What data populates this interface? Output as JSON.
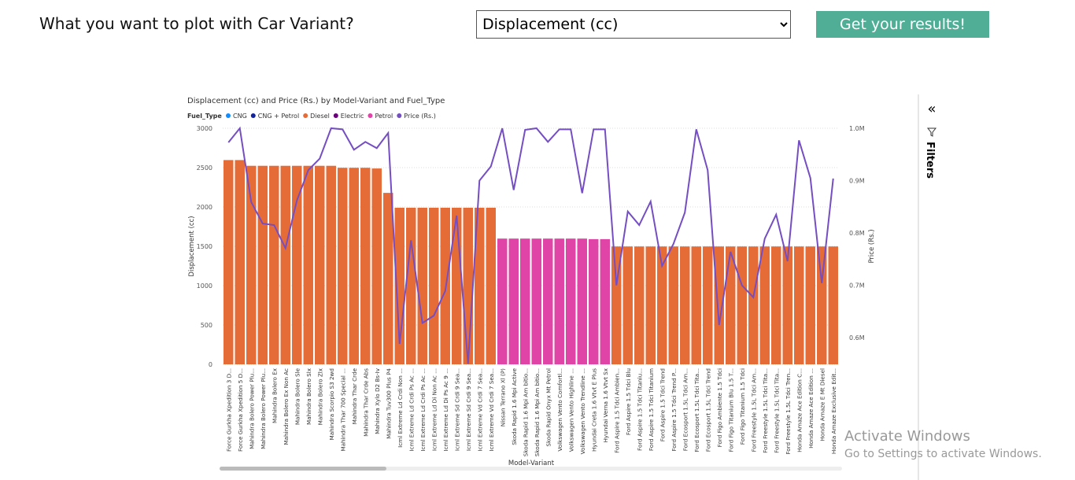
{
  "header": {
    "question": "What you want to plot with Car Variant?",
    "selected": "Displacement (cc)",
    "button": "Get your results!"
  },
  "filters": {
    "label": "Filters"
  },
  "watermark": {
    "title": "Activate Windows",
    "text": "Go to Settings to activate Windows."
  },
  "chart_data": {
    "type": "bar",
    "title": "Displacement (cc) and Price (Rs.) by Model-Variant and Fuel_Type",
    "x_label": "Model-Variant",
    "y_label": "Displacement (cc)",
    "y2_label": "Price (Rs.)",
    "legend_title": "Fuel_Type",
    "legend": [
      {
        "name": "CNG",
        "color": "#118dff"
      },
      {
        "name": "CNG + Petrol",
        "color": "#12239e"
      },
      {
        "name": "Diesel",
        "color": "#e66c37"
      },
      {
        "name": "Electric",
        "color": "#6b007b"
      },
      {
        "name": "Petrol",
        "color": "#e044a7"
      }
    ],
    "categories": [
      "Force Gurkha Xpedition 3 D...",
      "Force Gurkha Xpedition 5 D...",
      "Mahindra Bolero Power Plu...",
      "Mahindra Bolero Power Plu...",
      "Mahindra Bolero Ex",
      "Mahindra Bolero Ex Non Ac",
      "Mahindra Bolero Sle",
      "Mahindra Bolero Slx",
      "Mahindra Bolero Zlx",
      "Mahindra Scorpio S3 2wd",
      "Mahindra Thar 700 Special ...",
      "Mahindra Thar Crde",
      "Mahindra Thar Crde Abs",
      "Mahindra Xylo D2 Bs-Iv",
      "Mahindra Tuv300 Plus P4",
      "Icml Extreme Ld Crdi Non ...",
      "Icml Extreme Ld Crdi Ps Ac ...",
      "Icml Extreme Ld Crdi Ps Ac ...",
      "Icml Extreme Ld Di Non Ac ...",
      "Icml Extreme Ld Di Ps Ac 9 ...",
      "Icml Extreme Sd Crdi 9 Sea...",
      "Icml Extreme Sd Crdi 9 Sea...",
      "Icml Extreme Vd Crdi 7 Sea...",
      "Icml Extreme Vd Crdi 7 Sea...",
      "Nissan Terrano Xl (P)",
      "Skoda Rapid 1.6 Mpi Active",
      "Skoda Rapid 1.6 Mpi Am bitio...",
      "Skoda Rapid 1.6 Mpi Am bitio...",
      "Skoda Rapid Onyx Mt Petrol",
      "Volkswagen Vento Comfortl...",
      "Volkswagen Vento Highline ...",
      "Volkswagen Vento Trendline ...",
      "Hyundai Creta 1.6 Vtvt E Plus",
      "Hyundai Verna 1.6 Vtvt Sx",
      "Ford Aspire 1.5 Tdci Ambien...",
      "Ford Aspire 1.5 Tdci Blu",
      "Ford Aspire 1.5 Tdci Titaniu...",
      "Ford Aspire 1.5 Tdci Titanium",
      "Ford Aspire 1.5 Tdci Trend",
      "Ford Aspire 1.5 Tdci Trend P...",
      "Ford Ecosport 1.5L Tdci Am...",
      "Ford Ecosport 1.5L Tdci Tita...",
      "Ford Ecosport 1.5L Tdci Trend",
      "Ford Figo Ambiente 1.5 Tdci",
      "Ford Figo Titanium Blu 1.5 T...",
      "Ford Figo Titanium 1.5 Tdci",
      "Ford Freestyle 1.5L Tdci Am...",
      "Ford Freestyle 1.5L Tdci Tita...",
      "Ford Freestyle 1.5L Tdci Tita...",
      "Ford Freestyle 1.5L Tdci Tren...",
      "Honda Amaze Ace Edition C...",
      "Honda Amaze Ace Edition ...",
      "Honda Amaze E Mt Diesel",
      "Honda Amaze Exclusive Edit..."
    ],
    "fuel": [
      "Diesel",
      "Diesel",
      "Diesel",
      "Diesel",
      "Diesel",
      "Diesel",
      "Diesel",
      "Diesel",
      "Diesel",
      "Diesel",
      "Diesel",
      "Diesel",
      "Diesel",
      "Diesel",
      "Diesel",
      "Diesel",
      "Diesel",
      "Diesel",
      "Diesel",
      "Diesel",
      "Diesel",
      "Diesel",
      "Diesel",
      "Diesel",
      "Petrol",
      "Petrol",
      "Petrol",
      "Petrol",
      "Petrol",
      "Petrol",
      "Petrol",
      "Petrol",
      "Petrol",
      "Petrol",
      "Diesel",
      "Diesel",
      "Diesel",
      "Diesel",
      "Diesel",
      "Diesel",
      "Diesel",
      "Diesel",
      "Diesel",
      "Diesel",
      "Diesel",
      "Diesel",
      "Diesel",
      "Diesel",
      "Diesel",
      "Diesel",
      "Diesel",
      "Diesel",
      "Diesel",
      "Diesel"
    ],
    "values": [
      2596,
      2596,
      2523,
      2523,
      2523,
      2523,
      2523,
      2523,
      2523,
      2523,
      2498,
      2498,
      2498,
      2489,
      2179,
      1990,
      1990,
      1990,
      1990,
      1990,
      1990,
      1990,
      1990,
      1990,
      1598,
      1598,
      1598,
      1598,
      1598,
      1598,
      1598,
      1598,
      1591,
      1591,
      1498,
      1498,
      1498,
      1498,
      1498,
      1498,
      1498,
      1498,
      1498,
      1498,
      1498,
      1498,
      1498,
      1498,
      1498,
      1498,
      1498,
      1498,
      1498,
      1498
    ],
    "price": {
      "name": "Price (Rs.)",
      "color": "#744ec2",
      "axis": "y2",
      "values": [
        973000,
        1000000,
        859000,
        818000,
        815000,
        771000,
        862000,
        920000,
        942000,
        1000000,
        998000,
        959000,
        974000,
        962000,
        991000,
        588000,
        786000,
        628000,
        642000,
        689000,
        833000,
        550000,
        900000,
        927000,
        1000000,
        882000,
        997000,
        1000000,
        974000,
        998000,
        998000,
        876000,
        998000,
        998000,
        700000,
        841000,
        815000,
        860000,
        737000,
        779000,
        839000,
        998000,
        920000,
        624000,
        764000,
        700000,
        677000,
        789000,
        835000,
        746000,
        977000,
        905000,
        704000,
        904000
      ]
    },
    "ylim": [
      0,
      3000
    ],
    "yticks": [
      0,
      500,
      1000,
      1500,
      2000,
      2500,
      3000
    ],
    "y2lim": [
      549000,
      1000000
    ],
    "y2ticks": [
      {
        "value": 600000,
        "label": "0.6M"
      },
      {
        "value": 700000,
        "label": "0.7M"
      },
      {
        "value": 800000,
        "label": "0.8M"
      },
      {
        "value": 900000,
        "label": "0.9M"
      },
      {
        "value": 1000000,
        "label": "1.0M"
      }
    ],
    "grid": true
  }
}
